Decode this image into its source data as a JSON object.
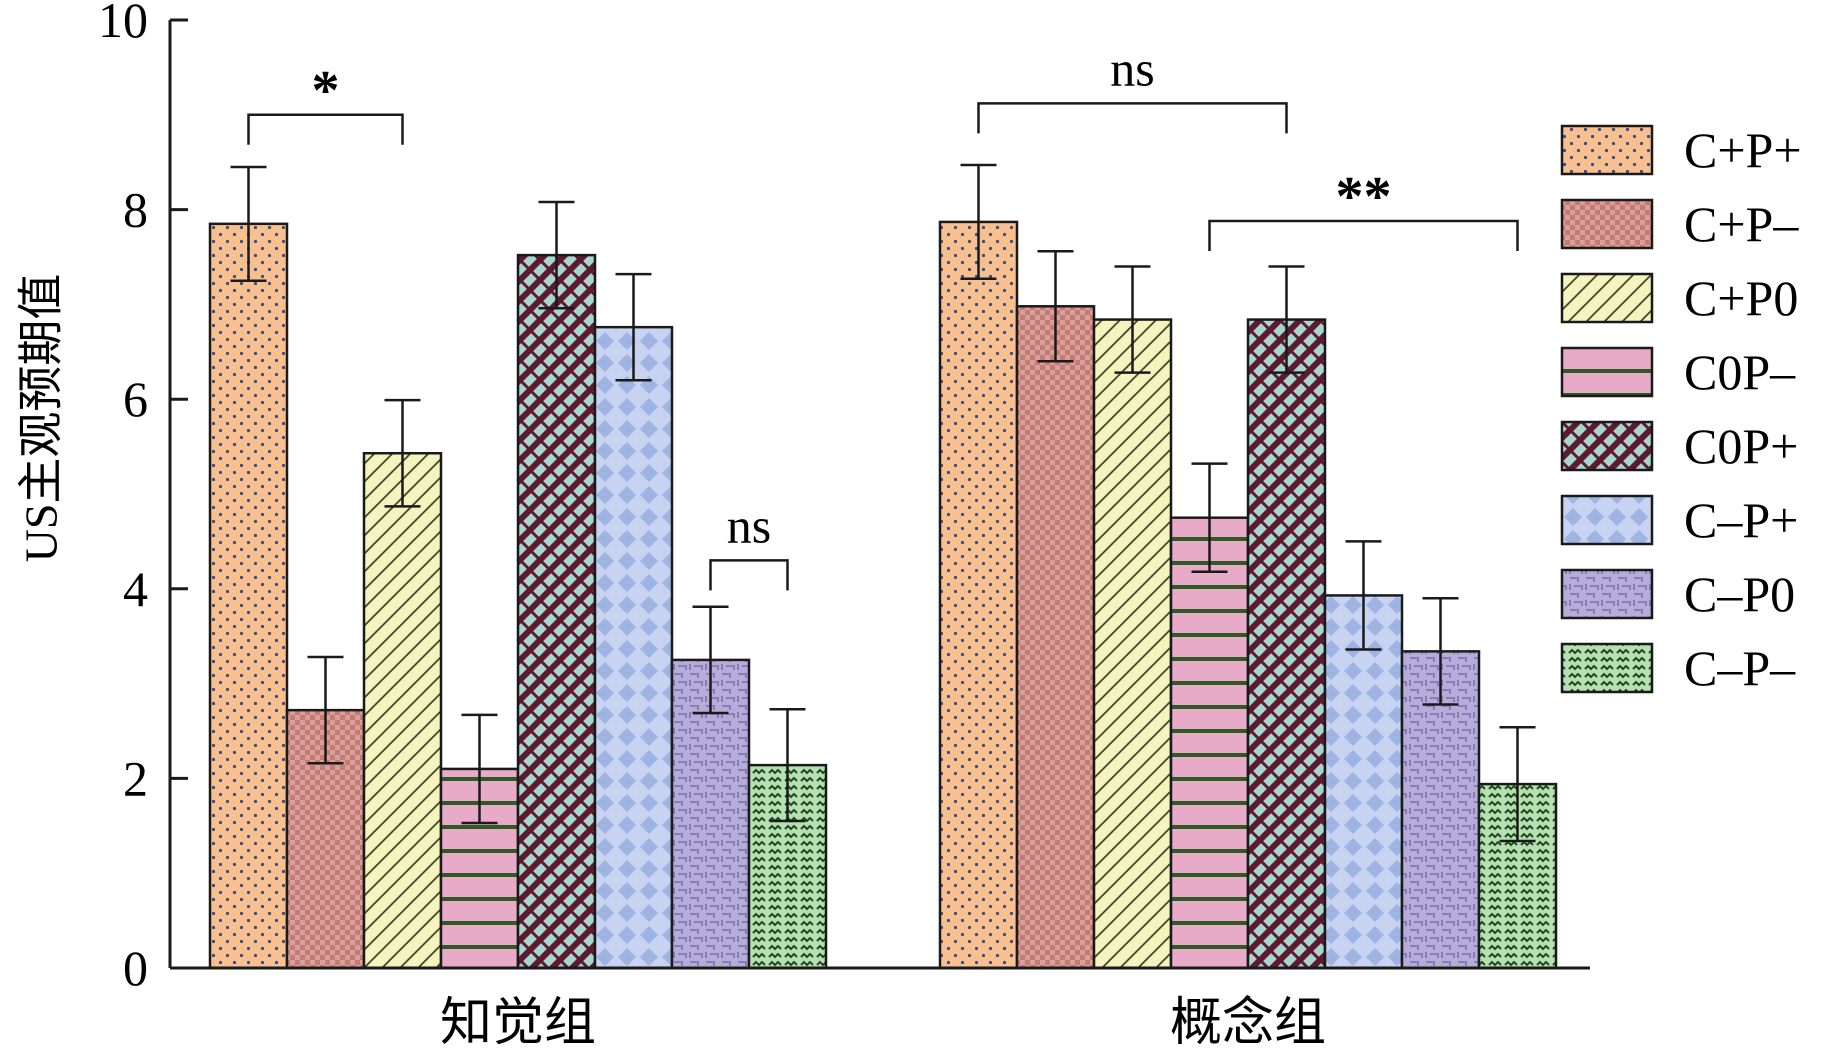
{
  "chart_data": {
    "type": "bar",
    "title": "",
    "xlabel": "",
    "ylabel": "US主观预期值",
    "ylim": [
      0,
      10
    ],
    "yticks": [
      0,
      2,
      4,
      6,
      8,
      10
    ],
    "grid": false,
    "legend_position": "right",
    "categories": [
      "知觉组",
      "概念组"
    ],
    "series": [
      {
        "name": "C+P+",
        "values": [
          7.85,
          7.87
        ],
        "errors": [
          0.6,
          0.6
        ],
        "color": "#f9c08f",
        "pattern": "dots"
      },
      {
        "name": "C+P–",
        "values": [
          2.72,
          6.98
        ],
        "errors": [
          0.56,
          0.58
        ],
        "color": "#c47b75",
        "pattern": "checker"
      },
      {
        "name": "C+P0",
        "values": [
          5.43,
          6.84
        ],
        "errors": [
          0.56,
          0.56
        ],
        "color": "#f5f3be",
        "pattern": "diagonal"
      },
      {
        "name": "C0P–",
        "values": [
          2.1,
          4.75
        ],
        "errors": [
          0.57,
          0.57
        ],
        "color": "#e7abc8",
        "pattern": "horizontal"
      },
      {
        "name": "C0P+",
        "values": [
          7.52,
          6.84
        ],
        "errors": [
          0.56,
          0.56
        ],
        "color": "#a8d4cf",
        "pattern": "weave"
      },
      {
        "name": "C–P+",
        "values": [
          6.76,
          3.93
        ],
        "errors": [
          0.56,
          0.57
        ],
        "color": "#b9c8ea",
        "pattern": "diamonds"
      },
      {
        "name": "C–P0",
        "values": [
          3.25,
          3.34
        ],
        "errors": [
          0.56,
          0.56
        ],
        "color": "#b5acd8",
        "pattern": "maze"
      },
      {
        "name": "C–P–",
        "values": [
          2.14,
          1.94
        ],
        "errors": [
          0.59,
          0.6
        ],
        "color": "#b6dfb3",
        "pattern": "squiggle"
      }
    ],
    "annotations": [
      {
        "group": 0,
        "from": 0,
        "to": 2,
        "label": "*",
        "bracket_y": 9.0
      },
      {
        "group": 0,
        "from": 6,
        "to": 7,
        "label": "ns",
        "bracket_y": 4.3
      },
      {
        "group": 1,
        "from": 0,
        "to": 4,
        "label": "ns",
        "bracket_y": 9.12
      },
      {
        "group": 1,
        "from": 3,
        "to": 7,
        "label": "**",
        "bracket_y": 7.88
      }
    ]
  }
}
